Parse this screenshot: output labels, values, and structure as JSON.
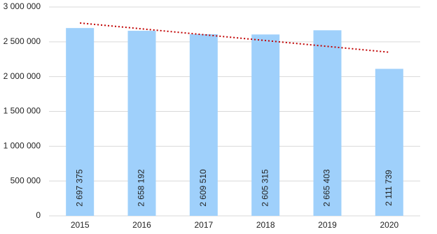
{
  "chart_data": {
    "type": "bar",
    "categories": [
      "2015",
      "2016",
      "2017",
      "2018",
      "2019",
      "2020"
    ],
    "values": [
      2697375,
      2658192,
      2609510,
      2605315,
      2665403,
      2111739
    ],
    "value_labels": [
      "2 697 375",
      "2 658 192",
      "2 609 510",
      "2 605 315",
      "2 665 403",
      "2 111 739"
    ],
    "color": "#9fd0fb",
    "ylim": [
      0,
      3000000
    ],
    "yticks": [
      0,
      {
        "value": 500000,
        "label": "500 000"
      },
      {
        "value": 1000000,
        "label": "1 000 000"
      },
      {
        "value": 1500000,
        "label": "1 500 000"
      },
      {
        "value": 2000000,
        "label": "2 000 000"
      },
      {
        "value": 2500000,
        "label": "2 500 000"
      },
      {
        "value": 3000000,
        "label": "3 000 000"
      }
    ],
    "grid": true,
    "trendline": {
      "color": "#c00000",
      "values": [
        2770000,
        2350000
      ]
    }
  }
}
